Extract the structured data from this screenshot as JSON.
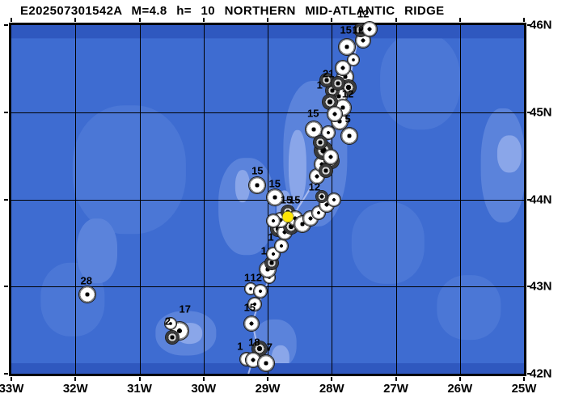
{
  "header": {
    "title": "E202507301542A M=4.8 h= 10 NORTHERN MID-ATLANTIC RIDGE"
  },
  "colors": {
    "ocean": "#3E6CD1",
    "ocean_dark": "#2F58BF",
    "ocean_mid": "#4B77D6",
    "ocean_light": "#5B83DB",
    "ocean_lighter": "#8AA6E9",
    "ridge": "#B8C6F2",
    "grid": "#000000",
    "frame": "#000000",
    "event_dot": "#FFE605",
    "ball_ring": "#7D7D7D",
    "ball_face": "#FFFFFF",
    "ball_dot": "#000000"
  },
  "chart_data": {
    "type": "map",
    "title": "E202507301542A M=4.8 h= 10 NORTHERN MID-ATLANTIC RIDGE",
    "region_name": "NORTHERN MID-ATLANTIC RIDGE",
    "event": {
      "id": "E202507301542A",
      "magnitude": 4.8,
      "depth_km": 10,
      "lon": -28.68,
      "lat": 43.8
    },
    "lon_range": [
      -33,
      -25
    ],
    "lat_range": [
      42,
      46
    ],
    "grid_lons": [
      -32,
      -31,
      -30,
      -29,
      -28,
      -27,
      -26
    ],
    "grid_lats": [
      45,
      44,
      43
    ],
    "lon_ticks": [
      {
        "lon": -33,
        "label": "33W"
      },
      {
        "lon": -32,
        "label": "32W"
      },
      {
        "lon": -31,
        "label": "31W"
      },
      {
        "lon": -30,
        "label": "30W"
      },
      {
        "lon": -29,
        "label": "29W"
      },
      {
        "lon": -28,
        "label": "28W"
      },
      {
        "lon": -27,
        "label": "27W"
      },
      {
        "lon": -26,
        "label": "26W"
      },
      {
        "lon": -25,
        "label": "25W"
      }
    ],
    "lat_ticks": [
      {
        "lat": 46,
        "label": "46N"
      },
      {
        "lat": 45,
        "label": "45N"
      },
      {
        "lat": 44,
        "label": "44N"
      },
      {
        "lat": 43,
        "label": "43N"
      },
      {
        "lat": 42,
        "label": "42N"
      }
    ],
    "mechanisms": [
      [
        -29.33,
        42.17,
        8,
        0
      ],
      [
        -29.13,
        42.29,
        9,
        1
      ],
      [
        -29.23,
        42.16,
        9,
        0
      ],
      [
        -29.03,
        42.12,
        10,
        0
      ],
      [
        -29.25,
        42.58,
        9,
        0
      ],
      [
        -29.2,
        42.8,
        8,
        0
      ],
      [
        -29.27,
        42.97,
        7,
        0
      ],
      [
        -29.11,
        42.95,
        8,
        0
      ],
      [
        -28.97,
        43.1,
        7,
        0
      ],
      [
        -29.0,
        43.2,
        10,
        0
      ],
      [
        -28.94,
        43.27,
        8,
        1
      ],
      [
        -28.91,
        43.37,
        8,
        0
      ],
      [
        -28.79,
        43.47,
        8,
        0
      ],
      [
        -28.84,
        43.66,
        9,
        1
      ],
      [
        -28.74,
        43.62,
        9,
        0
      ],
      [
        -28.63,
        43.69,
        9,
        1
      ],
      [
        -28.8,
        43.76,
        9,
        0
      ],
      [
        -28.91,
        43.75,
        8,
        0
      ],
      [
        -28.68,
        43.86,
        8,
        1
      ],
      [
        -28.57,
        43.78,
        9,
        0
      ],
      [
        -28.46,
        43.72,
        10,
        0
      ],
      [
        -28.33,
        43.78,
        9,
        0
      ],
      [
        -28.21,
        43.85,
        8,
        0
      ],
      [
        -28.08,
        43.94,
        9,
        0
      ],
      [
        -27.97,
        44.0,
        8,
        0
      ],
      [
        -28.15,
        44.03,
        7,
        1
      ],
      [
        -29.16,
        44.16,
        10,
        0
      ],
      [
        -28.89,
        44.02,
        10,
        0
      ],
      [
        -28.23,
        44.26,
        9,
        0
      ],
      [
        -28.15,
        44.4,
        9,
        0
      ],
      [
        -28.0,
        44.44,
        9,
        1
      ],
      [
        -28.09,
        44.33,
        8,
        1
      ],
      [
        -28.28,
        44.8,
        10,
        0
      ],
      [
        -28.05,
        44.77,
        8,
        0
      ],
      [
        -27.88,
        44.9,
        10,
        0
      ],
      [
        -27.73,
        44.73,
        10,
        0
      ],
      [
        -28.13,
        44.56,
        11,
        1
      ],
      [
        -28.02,
        44.49,
        9,
        0
      ],
      [
        -28.18,
        44.65,
        8,
        1
      ],
      [
        -27.79,
        45.41,
        10,
        0
      ],
      [
        -27.74,
        45.29,
        9,
        1
      ],
      [
        -27.89,
        45.18,
        10,
        0
      ],
      [
        -27.83,
        45.05,
        10,
        0
      ],
      [
        -27.99,
        45.25,
        8,
        1
      ],
      [
        -28.03,
        45.12,
        9,
        1
      ],
      [
        -27.95,
        44.98,
        9,
        0
      ],
      [
        -28.08,
        45.37,
        8,
        1
      ],
      [
        -27.9,
        45.33,
        8,
        1
      ],
      [
        -27.83,
        45.51,
        9,
        0
      ],
      [
        -27.66,
        45.6,
        7,
        0
      ],
      [
        -27.76,
        45.75,
        10,
        0
      ],
      [
        -27.51,
        45.82,
        9,
        0
      ],
      [
        -27.55,
        45.94,
        8,
        1
      ],
      [
        -27.41,
        45.95,
        9,
        0
      ],
      [
        -31.81,
        42.91,
        10,
        0
      ],
      [
        -30.38,
        42.49,
        11,
        0
      ],
      [
        -30.51,
        42.58,
        7,
        0
      ],
      [
        -30.49,
        42.42,
        8,
        1
      ]
    ],
    "day_labels": [
      [
        "12",
        -27.51,
        46.13
      ],
      [
        "15",
        -27.78,
        45.94
      ],
      [
        "12",
        -27.59,
        45.94
      ],
      [
        "21",
        -28.05,
        45.44
      ],
      [
        "1",
        -28.19,
        45.31
      ],
      [
        "12",
        -27.75,
        45.21
      ],
      [
        "15",
        -28.29,
        44.99
      ],
      [
        "5",
        -27.75,
        44.92
      ],
      [
        "15",
        -29.16,
        44.33
      ],
      [
        "15",
        -28.89,
        44.18
      ],
      [
        "15",
        -28.71,
        44.0
      ],
      [
        "15",
        -28.58,
        44.0
      ],
      [
        "12",
        -28.27,
        44.14
      ],
      [
        "1",
        -28.95,
        43.57
      ],
      [
        "1",
        -29.06,
        43.41
      ],
      [
        "1",
        -29.32,
        43.1
      ],
      [
        "12",
        -29.18,
        43.1
      ],
      [
        "15",
        -29.28,
        42.76
      ],
      [
        "1",
        -29.43,
        42.32
      ],
      [
        "18",
        -29.21,
        42.36
      ],
      [
        "7",
        -28.97,
        42.31
      ],
      [
        "28",
        -31.83,
        43.07
      ],
      [
        "17",
        -30.29,
        42.74
      ],
      [
        "2",
        -30.56,
        42.6
      ]
    ],
    "ridge_path": [
      [
        -29.3,
        42.0
      ],
      [
        -29.23,
        42.17
      ],
      [
        -29.16,
        42.32
      ],
      [
        -29.21,
        42.48
      ],
      [
        -29.22,
        42.63
      ],
      [
        -29.15,
        42.79
      ],
      [
        -29.06,
        42.94
      ],
      [
        -28.97,
        43.1
      ],
      [
        -28.9,
        43.25
      ],
      [
        -28.85,
        43.39
      ],
      [
        -28.75,
        43.52
      ],
      [
        -28.67,
        43.64
      ],
      [
        -28.62,
        43.78
      ],
      [
        -28.52,
        43.91
      ],
      [
        -28.39,
        44.06
      ],
      [
        -28.27,
        44.21
      ],
      [
        -28.18,
        44.37
      ],
      [
        -28.12,
        44.52
      ],
      [
        -28.02,
        44.7
      ],
      [
        -27.93,
        44.88
      ],
      [
        -27.86,
        45.04
      ],
      [
        -27.76,
        45.23
      ],
      [
        -27.71,
        45.42
      ],
      [
        -27.66,
        45.6
      ],
      [
        -27.61,
        45.79
      ],
      [
        -27.56,
        45.97
      ]
    ],
    "bathymetry": [
      {
        "lon": -31.16,
        "lat": 44.34,
        "w": 1.77,
        "h": 1.48,
        "tone": "mid"
      },
      {
        "lon": -32.04,
        "lat": 42.85,
        "w": 1.0,
        "h": 0.84,
        "tone": "mid"
      },
      {
        "lon": -26.62,
        "lat": 45.36,
        "w": 1.26,
        "h": 1.11,
        "tone": "mid"
      },
      {
        "lon": -27.12,
        "lat": 43.5,
        "w": 1.14,
        "h": 0.93,
        "tone": "mid"
      },
      {
        "lon": -25.86,
        "lat": 42.76,
        "w": 1.0,
        "h": 0.74,
        "tone": "mid"
      },
      {
        "lon": -28.26,
        "lat": 44.52,
        "w": 1.0,
        "h": 1.67,
        "tone": "light"
      },
      {
        "lon": -29.33,
        "lat": 43.92,
        "w": 0.88,
        "h": 1.11,
        "tone": "light"
      },
      {
        "lon": -28.89,
        "lat": 42.34,
        "w": 0.69,
        "h": 0.56,
        "tone": "light"
      },
      {
        "lon": -30.28,
        "lat": 42.46,
        "w": 0.95,
        "h": 0.51,
        "tone": "light"
      },
      {
        "lon": -25.33,
        "lat": 44.39,
        "w": 0.69,
        "h": 1.3,
        "tone": "light"
      },
      {
        "lon": -31.66,
        "lat": 43.41,
        "w": 0.63,
        "h": 0.74,
        "tone": "light"
      },
      {
        "lon": -28.53,
        "lat": 44.38,
        "w": 0.28,
        "h": 0.84,
        "tone": "lighter"
      },
      {
        "lon": -28.74,
        "lat": 43.89,
        "w": 0.25,
        "h": 0.42,
        "tone": "lighter"
      },
      {
        "lon": -25.23,
        "lat": 44.52,
        "w": 0.38,
        "h": 0.42,
        "tone": "lighter"
      },
      {
        "lon": -30.22,
        "lat": 42.46,
        "w": 0.4,
        "h": 0.24,
        "tone": "lighter"
      },
      {
        "lon": -28.8,
        "lat": 42.18,
        "w": 0.28,
        "h": 0.3,
        "tone": "lighter"
      },
      {
        "lon": -29.39,
        "lat": 44.15,
        "w": 0.23,
        "h": 0.37,
        "tone": "lighter"
      },
      {
        "lon": -29.0,
        "lat": 45.93,
        "w": 8.4,
        "h": 0.16,
        "tone": "dark",
        "band": true
      },
      {
        "lon": -29.0,
        "lat": 42.06,
        "w": 8.4,
        "h": 0.13,
        "tone": "dark",
        "band": true
      }
    ]
  }
}
